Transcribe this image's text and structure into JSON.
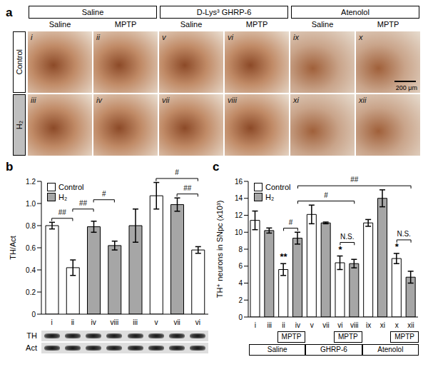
{
  "panel_a": {
    "label": "a",
    "columns": [
      {
        "title": "Saline",
        "sub": [
          "Saline",
          "MPTP"
        ]
      },
      {
        "title": "D-Lys³ GHRP-6",
        "sub": [
          "Saline",
          "MPTP"
        ]
      },
      {
        "title": "Atenolol",
        "sub": [
          "Saline",
          "MPTP"
        ]
      }
    ],
    "rows": [
      {
        "label": "Control",
        "images": [
          "i",
          "ii",
          "v",
          "vi",
          "ix",
          "x"
        ]
      },
      {
        "label": "H₂",
        "images": [
          "iii",
          "iv",
          "vii",
          "viii",
          "xi",
          "xii"
        ]
      }
    ],
    "scale_bar": "200 μm"
  },
  "chart_data": [
    {
      "panel": "b",
      "type": "bar",
      "ylabel": "TH/Act",
      "categories": [
        "i",
        "ii",
        "iv",
        "viii",
        "iii",
        "v",
        "vii",
        "vi"
      ],
      "series": [
        {
          "name": "Control",
          "color": "#ffffff",
          "values": [
            0.8,
            0.42,
            null,
            null,
            null,
            1.07,
            null,
            0.58
          ],
          "errors": [
            0.03,
            0.07,
            null,
            null,
            null,
            0.12,
            null,
            0.03
          ]
        },
        {
          "name": "H₂",
          "color": "#a6a6a6",
          "values": [
            null,
            null,
            0.79,
            0.62,
            0.8,
            null,
            0.99,
            null
          ],
          "errors": [
            null,
            null,
            0.05,
            0.04,
            0.15,
            null,
            0.06,
            null
          ]
        }
      ],
      "ylim": [
        0,
        1.2
      ],
      "yticks": [
        0,
        0.2,
        0.4,
        0.6,
        0.8,
        {
          "value": 1,
          "label": "1.0"
        },
        1.2
      ],
      "legend": "top-left",
      "annotations": [
        {
          "from": "i",
          "to": "ii",
          "label": "##"
        },
        {
          "from": "ii",
          "to": "iv",
          "label": "##"
        },
        {
          "from": "iv",
          "to": "viii",
          "label": "#"
        },
        {
          "from": "v",
          "to": "vi",
          "label": "#"
        },
        {
          "from": "vii",
          "to": "vi",
          "label": "##"
        }
      ],
      "blot": [
        "TH",
        "Act"
      ]
    },
    {
      "panel": "c",
      "type": "bar",
      "ylabel": "TH⁺ neurons in SNpc (x10³)",
      "categories": [
        "i",
        "iii",
        "ii",
        "iv",
        "v",
        "vii",
        "vi",
        "viii",
        "ix",
        "xi",
        "x",
        "xii"
      ],
      "series": [
        {
          "name": "Control",
          "color": "#ffffff",
          "values": [
            11.4,
            null,
            5.6,
            null,
            12.1,
            null,
            6.4,
            null,
            11.1,
            null,
            6.9,
            null
          ],
          "errors": [
            1.1,
            null,
            0.7,
            null,
            1.1,
            null,
            0.8,
            null,
            0.4,
            null,
            0.6,
            null
          ]
        },
        {
          "name": "H₂",
          "color": "#a6a6a6",
          "values": [
            null,
            10.2,
            null,
            9.3,
            null,
            11.1,
            null,
            6.3,
            null,
            14.0,
            null,
            4.7
          ],
          "errors": [
            null,
            0.3,
            null,
            0.7,
            null,
            0.1,
            null,
            0.5,
            null,
            1.0,
            null,
            0.7
          ]
        }
      ],
      "ylim": [
        0,
        16
      ],
      "yticks": [
        0,
        2,
        4,
        6,
        8,
        10,
        12,
        14,
        16
      ],
      "legend": "top-left",
      "annotations": [
        {
          "at": "ii",
          "label": "**"
        },
        {
          "at": "vi",
          "label": "*"
        },
        {
          "at": "x",
          "label": "*"
        },
        {
          "from": "ii",
          "to": "iv",
          "label": "#"
        },
        {
          "from": "vi",
          "to": "viii",
          "label": "N.S."
        },
        {
          "from": "x",
          "to": "xii",
          "label": "N.S."
        },
        {
          "from": "iv",
          "to": "viii",
          "label": "#"
        },
        {
          "from": "iv",
          "to": "xii",
          "label": "##"
        }
      ],
      "sublabels": [
        {
          "label": "MPTP",
          "from": "ii",
          "to": "iv"
        },
        {
          "label": "MPTP",
          "from": "vi",
          "to": "viii"
        },
        {
          "label": "MPTP",
          "from": "x",
          "to": "xii"
        }
      ],
      "groups": [
        {
          "label": "Saline",
          "from": "i",
          "to": "iv"
        },
        {
          "label": "GHRP-6",
          "from": "v",
          "to": "viii"
        },
        {
          "label": "Atenolol",
          "from": "ix",
          "to": "xii"
        }
      ]
    }
  ]
}
